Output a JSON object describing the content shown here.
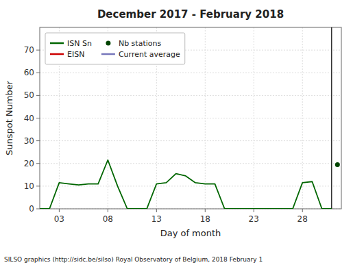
{
  "chart_data": {
    "type": "line",
    "title": "December 2017 - February 2018",
    "x_label": "Day of month",
    "y_label": "Sunspot Number",
    "annotations": [
      {
        "text": "SILSO graphics (http://sidc.be/silso) Royal Observatory of Belgium, 2018 February 1"
      }
    ],
    "xlim": [
      1,
      32
    ],
    "ylim": [
      0,
      80
    ],
    "xticks": [
      {
        "value": 3,
        "label": "03"
      },
      {
        "value": 8,
        "label": "08"
      },
      {
        "value": 13,
        "label": "13"
      },
      {
        "value": 18,
        "label": "18"
      },
      {
        "value": 23,
        "label": "23"
      },
      {
        "value": 28,
        "label": "28"
      }
    ],
    "yticks": [
      0,
      10,
      20,
      30,
      40,
      50,
      60,
      70
    ],
    "grid": true,
    "legend": "upper left",
    "vlines": [
      {
        "x": 31.0,
        "color": "#000000"
      }
    ],
    "series": [
      {
        "name": "ISN Sn",
        "type": "line",
        "color": "#006600",
        "x": [
          1,
          2,
          3,
          4,
          5,
          6,
          7,
          8,
          9,
          10,
          11,
          12,
          13,
          14,
          15,
          16,
          17,
          18,
          19,
          20,
          21,
          22,
          23,
          24,
          25,
          26,
          27,
          28,
          29,
          30,
          31
        ],
        "values": [
          0,
          0,
          11.5,
          11,
          10.5,
          11,
          11,
          21.5,
          10,
          0,
          0,
          0,
          11,
          11.5,
          15.5,
          14.5,
          11.5,
          11,
          11,
          0,
          0,
          0,
          0,
          0,
          0,
          0,
          0,
          11.5,
          12,
          0,
          0
        ]
      },
      {
        "name": "EISN",
        "type": "line",
        "color": "#cc0000",
        "x": [],
        "values": []
      },
      {
        "name": "Nb stations",
        "type": "scatter",
        "marker": "circle",
        "color": "#004400",
        "x": [
          31.6
        ],
        "values": [
          19.5
        ]
      },
      {
        "name": "Current average",
        "type": "line",
        "color": "#7777bb",
        "x": [],
        "values": []
      }
    ]
  }
}
